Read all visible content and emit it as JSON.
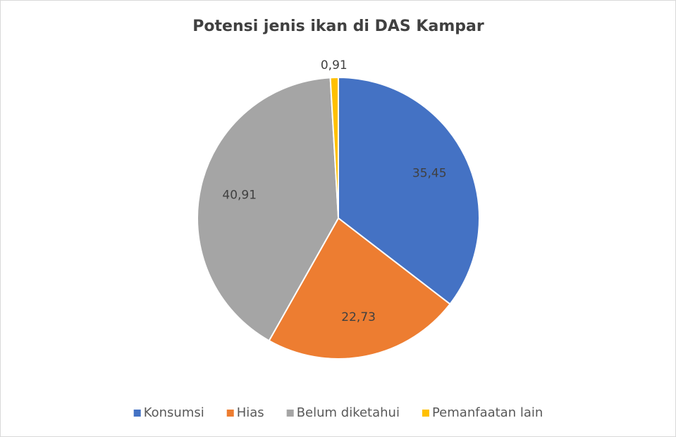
{
  "chart_data": {
    "type": "pie",
    "title": "Potensi jenis ikan di DAS Kampar",
    "categories": [
      "Konsumsi",
      "Hias",
      "Belum diketahui",
      "Pemanfaatan lain"
    ],
    "values": [
      35.45,
      22.73,
      40.91,
      0.91
    ],
    "value_labels": [
      "35,45",
      "22,73",
      "40,91",
      "0,91"
    ],
    "colors": [
      "#4472c4",
      "#ed7d31",
      "#a5a5a5",
      "#ffc000"
    ],
    "legend": "bottom"
  }
}
